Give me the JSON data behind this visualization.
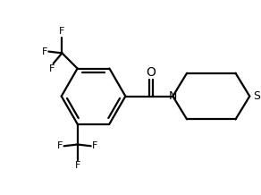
{
  "background_color": "#ffffff",
  "line_color": "#000000",
  "line_width": 1.6,
  "font_size": 9,
  "figsize": [
    2.92,
    2.18
  ],
  "dpi": 100,
  "xlim": [
    0,
    10
  ],
  "ylim": [
    0,
    7.5
  ]
}
